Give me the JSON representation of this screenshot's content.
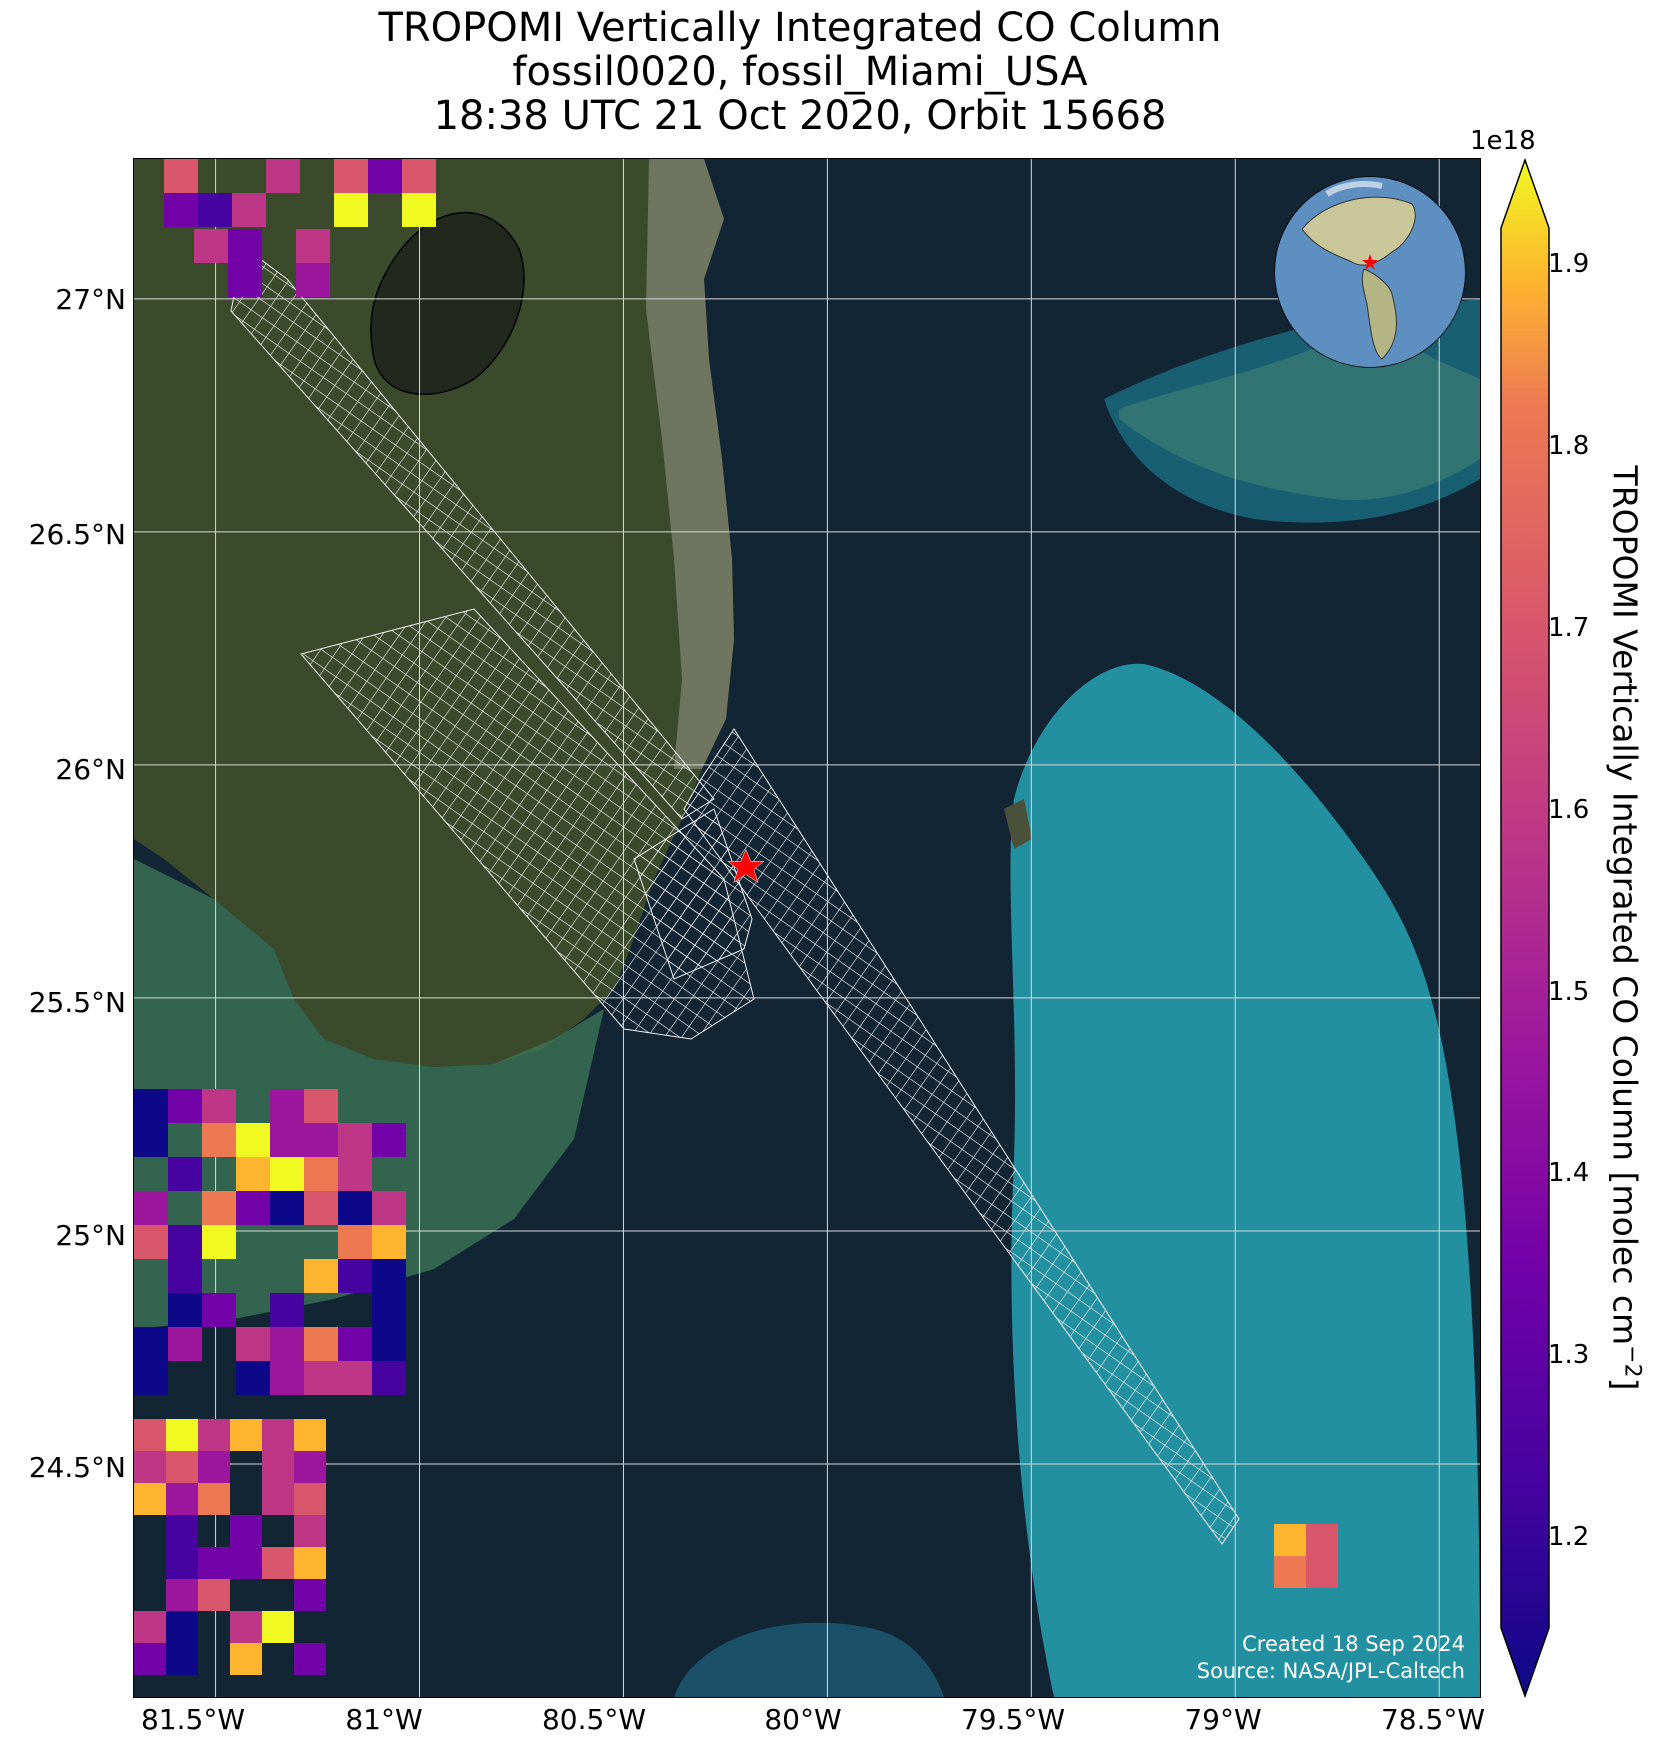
{
  "title": {
    "line1": "TROPOMI Vertically Integrated CO Column",
    "line2": "fossil0020, fossil_Miami_USA",
    "line3": "18:38 UTC 21 Oct 2020, Orbit 15668"
  },
  "map": {
    "lon_range": [
      -81.7,
      -78.4
    ],
    "lat_range": [
      24.0,
      27.3
    ],
    "lat_ticks": [
      {
        "value": 27.0,
        "label": "27°N"
      },
      {
        "value": 26.5,
        "label": "26.5°N"
      },
      {
        "value": 26.0,
        "label": "26°N"
      },
      {
        "value": 25.5,
        "label": "25.5°N"
      },
      {
        "value": 25.0,
        "label": "25°N"
      },
      {
        "value": 24.5,
        "label": "24.5°N"
      }
    ],
    "lon_ticks": [
      {
        "value": -81.5,
        "label": "81.5°W"
      },
      {
        "value": -81.0,
        "label": "81°W"
      },
      {
        "value": -80.5,
        "label": "80.5°W"
      },
      {
        "value": -80.0,
        "label": "80°W"
      },
      {
        "value": -79.5,
        "label": "79.5°W"
      },
      {
        "value": -79.0,
        "label": "79°W"
      },
      {
        "value": -78.5,
        "label": "78.5°W"
      }
    ],
    "site_marker": {
      "lon": -80.2,
      "lat": 25.78,
      "color": "#ff0000"
    },
    "colors": {
      "ocean": "#122534",
      "land": "#3c4a2c",
      "shallow": "#27a3b5",
      "grid": "#d8d8d8"
    }
  },
  "colorbar": {
    "label": "TROPOMI Vertically Integrated CO Column [molec cm",
    "label_exp": "−2",
    "label_end": "]",
    "exponent": "1e18",
    "vmin": 1.15,
    "vmax": 1.92,
    "ticks": [
      "1.2",
      "1.3",
      "1.4",
      "1.5",
      "1.6",
      "1.7",
      "1.8",
      "1.9"
    ],
    "colormap": "plasma"
  },
  "credits": {
    "created": "Created 18 Sep 2024",
    "source": "Source: NASA/JPL-Caltech"
  }
}
